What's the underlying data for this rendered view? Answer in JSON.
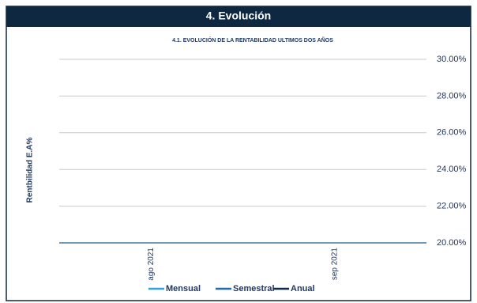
{
  "header": {
    "title": "4. Evolución"
  },
  "chart_data": {
    "type": "line",
    "title": "4.1. EVOLUCIÓN DE LA RENTABILIDAD ULTIMOS DOS AÑOS",
    "y_label": "Rentbilidad  E.A%",
    "categories": [
      "ago 2021",
      "sep 2021"
    ],
    "series": [
      {
        "name": "Mensual",
        "color": "#2ea3dc",
        "values": [
          null,
          null
        ]
      },
      {
        "name": "Semestral",
        "color": "#1f6db3",
        "values": [
          null,
          null
        ]
      },
      {
        "name": "Anual",
        "color": "#0f2b4c",
        "values": [
          null,
          null
        ]
      }
    ],
    "ylim": [
      20,
      30
    ],
    "yticks": [
      {
        "value": 20,
        "label": "20.00%"
      },
      {
        "value": 22,
        "label": "22.00%"
      },
      {
        "value": 24,
        "label": "24.00%"
      },
      {
        "value": 26,
        "label": "26.00%"
      },
      {
        "value": 28,
        "label": "28.00%"
      },
      {
        "value": 30,
        "label": "30.00%"
      }
    ],
    "grid": true
  }
}
